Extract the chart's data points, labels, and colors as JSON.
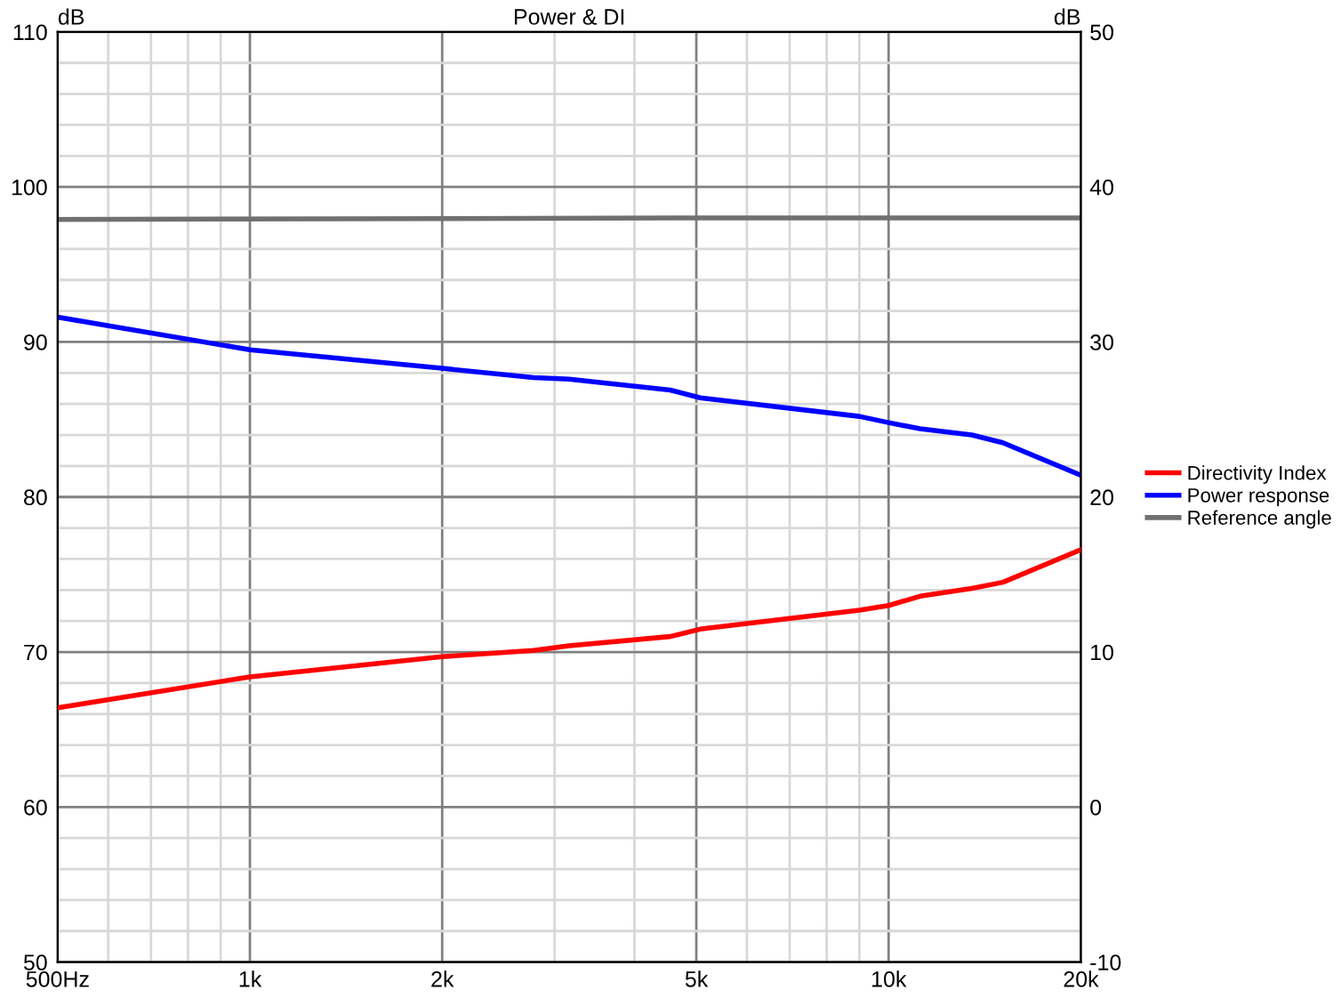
{
  "chart_data": {
    "type": "line",
    "title": "Power & DI",
    "ylabel": "dB",
    "y2label": "dB",
    "log": "x",
    "grid": true,
    "legend": "right",
    "line_style": "solid",
    "marker": "none",
    "xlim": [
      500,
      20000
    ],
    "xticks": [
      {
        "value": 500,
        "label": "500Hz"
      },
      {
        "value": 600,
        "label": null
      },
      {
        "value": 700,
        "label": null
      },
      {
        "value": 800,
        "label": null
      },
      {
        "value": 900,
        "label": null
      },
      {
        "value": 1000,
        "label": "1k"
      },
      {
        "value": 2000,
        "label": "2k"
      },
      {
        "value": 3000,
        "label": null
      },
      {
        "value": 4000,
        "label": null
      },
      {
        "value": 5000,
        "label": "5k"
      },
      {
        "value": 6000,
        "label": null
      },
      {
        "value": 7000,
        "label": null
      },
      {
        "value": 8000,
        "label": null
      },
      {
        "value": 9000,
        "label": null
      },
      {
        "value": 10000,
        "label": "10k"
      },
      {
        "value": 20000,
        "label": "20k"
      }
    ],
    "ylim": [
      50,
      110
    ],
    "yticks": [
      50,
      {
        "value": 52,
        "label": null
      },
      {
        "value": 54,
        "label": null
      },
      {
        "value": 56,
        "label": null
      },
      {
        "value": 58,
        "label": null
      },
      60,
      {
        "value": 62,
        "label": null
      },
      {
        "value": 64,
        "label": null
      },
      {
        "value": 66,
        "label": null
      },
      {
        "value": 68,
        "label": null
      },
      70,
      {
        "value": 72,
        "label": null
      },
      {
        "value": 74,
        "label": null
      },
      {
        "value": 76,
        "label": null
      },
      {
        "value": 78,
        "label": null
      },
      80,
      {
        "value": 82,
        "label": null
      },
      {
        "value": 84,
        "label": null
      },
      {
        "value": 86,
        "label": null
      },
      {
        "value": 88,
        "label": null
      },
      90,
      {
        "value": 92,
        "label": null
      },
      {
        "value": 94,
        "label": null
      },
      {
        "value": 96,
        "label": null
      },
      {
        "value": 98,
        "label": null
      },
      100,
      {
        "value": 102,
        "label": null
      },
      {
        "value": 104,
        "label": null
      },
      {
        "value": 106,
        "label": null
      },
      {
        "value": 108,
        "label": null
      },
      110
    ],
    "y2lim": [
      -10,
      50
    ],
    "y2ticks": [
      -10,
      0,
      10,
      20,
      30,
      40,
      50
    ],
    "series": [
      {
        "name": "Directivity Index",
        "color": "#ff0000",
        "axis": "y2",
        "x": [
          500,
          1000,
          2000,
          2780,
          3160,
          4550,
          5100,
          9000,
          10000,
          11200,
          13500,
          15100,
          20000
        ],
        "values": [
          6.4,
          8.4,
          9.7,
          10.1,
          10.4,
          11.0,
          11.5,
          12.7,
          13.0,
          13.6,
          14.1,
          14.5,
          16.6
        ]
      },
      {
        "name": "Power response",
        "color": "#0000ff",
        "x": [
          500,
          1000,
          2000,
          2780,
          3160,
          4550,
          5070,
          9000,
          10000,
          11200,
          13500,
          15100,
          20000
        ],
        "values": [
          91.6,
          89.5,
          88.3,
          87.7,
          87.6,
          86.9,
          86.4,
          85.2,
          84.8,
          84.4,
          84.0,
          83.5,
          81.4
        ]
      },
      {
        "name": "Reference angle",
        "color": "#707070",
        "x": [
          500,
          5000,
          20000
        ],
        "values": [
          97.9,
          98.0,
          98.0
        ]
      }
    ]
  }
}
